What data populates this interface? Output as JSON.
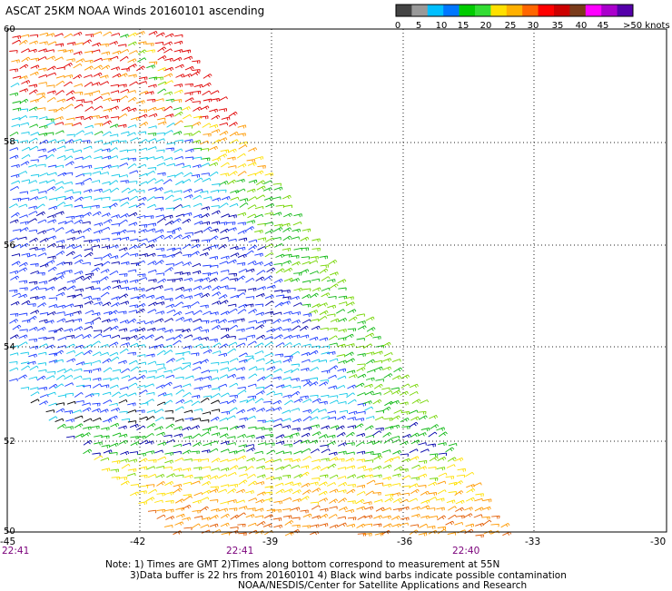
{
  "title": "ASCAT 25KM NOAA Winds 20160101 ascending",
  "legend": {
    "swatches": [
      "#444444",
      "#999999",
      "#00bfff",
      "#0077ff",
      "#00cc00",
      "#33dd33",
      "#ffe000",
      "#ffb000",
      "#ff6600",
      "#ff0000",
      "#cc0000",
      "#7a3b1a",
      "#ff00ff",
      "#aa00cc",
      "#5500aa"
    ],
    "labels": [
      "0",
      "5",
      "10",
      "15",
      "20",
      "25",
      "30",
      "35",
      "40",
      "45",
      ">50 knots"
    ]
  },
  "axes": {
    "lat_labels": [
      "60",
      "58",
      "56",
      "54",
      "52",
      "50"
    ],
    "lon_labels": [
      "-45",
      "-42",
      "-39",
      "-36",
      "-33",
      "-30"
    ],
    "time_labels": [
      "22:41",
      "22:41",
      "22:40"
    ]
  },
  "notes": [
    "Note: 1) Times are GMT 2)Times along bottom correspond to measurement at 55N",
    "3)Data buffer is 22 hrs from 20160101 4) Black wind barbs indicate possible contamination",
    "NOAA/NESDIS/Center for Satellite Applications and Research"
  ],
  "barb_colors": {
    "black": "#000000",
    "navy": "#0000aa",
    "blue": "#1c3bff",
    "cyan": "#10c8e8",
    "green": "#0fb814",
    "lime": "#74d500",
    "yellow": "#ffe000",
    "orange": "#ff9900",
    "darkorange": "#e35b00",
    "red": "#e00000",
    "brown": "#8b4513"
  }
}
